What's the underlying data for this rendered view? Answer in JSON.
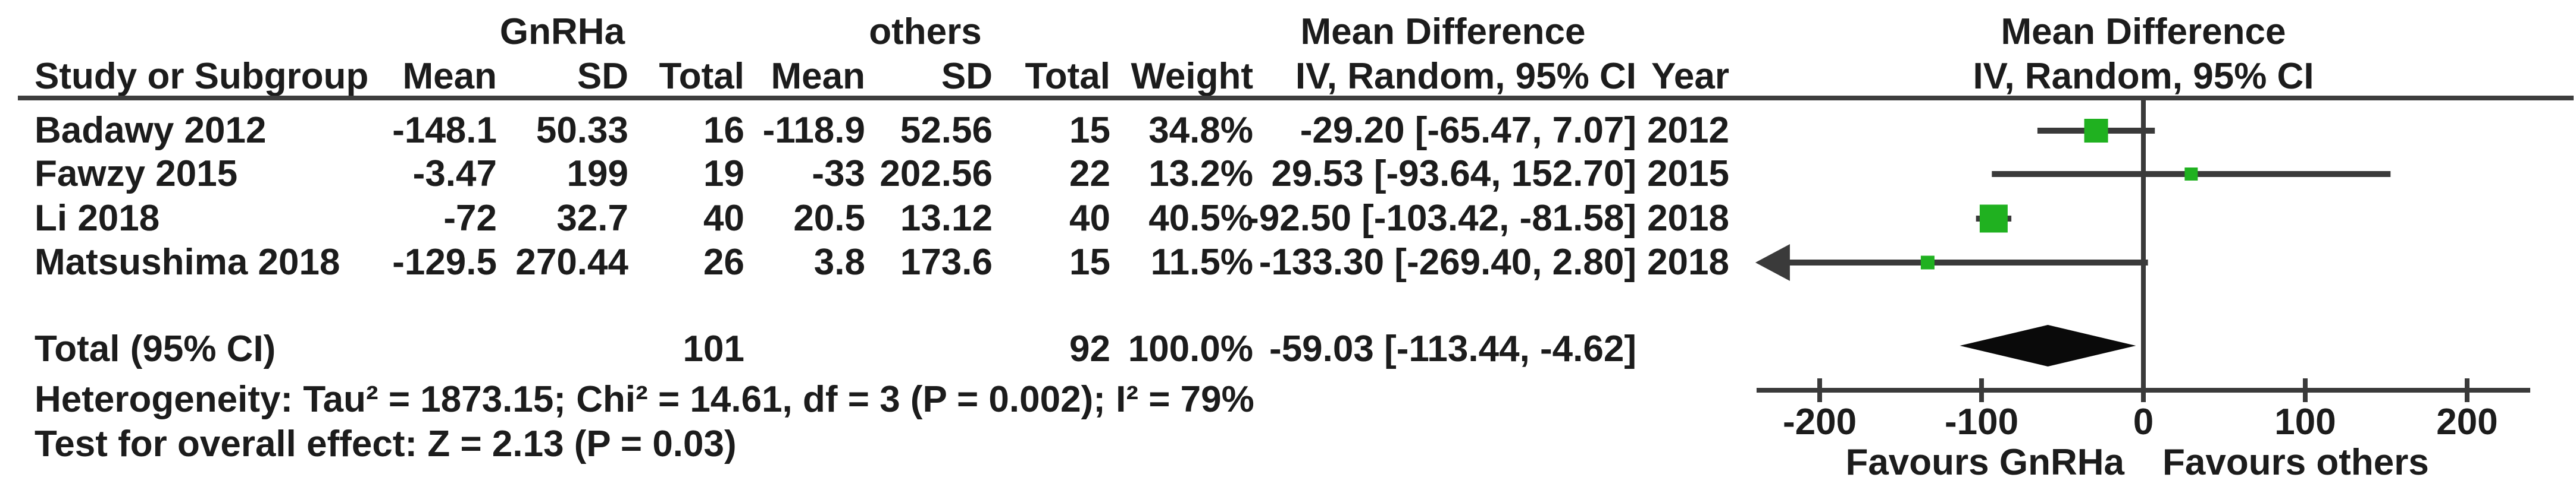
{
  "figure_title": "Forest plot: Mean Difference, GnRHa vs others (IV, Random, 95% CI)",
  "colors": {
    "marker_green": "#20b120",
    "line_dark": "#3a3a3a",
    "rule_gray": "#3e3e3e",
    "text": "#1c1c1c",
    "diamond_black": "#0a0a0a"
  },
  "table": {
    "group_headers": {
      "experimental": "GnRHa",
      "control": "others",
      "effect_text": "Mean Difference",
      "effect_plot": "Mean Difference"
    },
    "column_headers": {
      "study": "Study or Subgroup",
      "mean1": "Mean",
      "sd1": "SD",
      "total1": "Total",
      "mean2": "Mean",
      "sd2": "SD",
      "total2": "Total",
      "weight": "Weight",
      "ci": "IV, Random, 95% CI",
      "year": "Year",
      "ci_plot": "IV, Random, 95% CI"
    },
    "rows": [
      {
        "study": "Badawy 2012",
        "mean1": "-148.1",
        "sd1": "50.33",
        "total1": "16",
        "mean2": "-118.9",
        "sd2": "52.56",
        "total2": "15",
        "weight": "34.8%",
        "ci": "-29.20 [-65.47, 7.07]",
        "year": "2012"
      },
      {
        "study": "Fawzy 2015",
        "mean1": "-3.47",
        "sd1": "199",
        "total1": "19",
        "mean2": "-33",
        "sd2": "202.56",
        "total2": "22",
        "weight": "13.2%",
        "ci": "29.53 [-93.64, 152.70]",
        "year": "2015"
      },
      {
        "study": "Li 2018",
        "mean1": "-72",
        "sd1": "32.7",
        "total1": "40",
        "mean2": "20.5",
        "sd2": "13.12",
        "total2": "40",
        "weight": "40.5%",
        "ci": "-92.50 [-103.42, -81.58]",
        "year": "2018"
      },
      {
        "study": "Matsushima 2018",
        "mean1": "-129.5",
        "sd1": "270.44",
        "total1": "26",
        "mean2": "3.8",
        "sd2": "173.6",
        "total2": "15",
        "weight": "11.5%",
        "ci": "-133.30 [-269.40, 2.80]",
        "year": "2018"
      }
    ],
    "total": {
      "label": "Total (95% CI)",
      "total1": "101",
      "total2": "92",
      "weight": "100.0%",
      "ci": "-59.03 [-113.44, -4.62]"
    },
    "footer": {
      "heterogeneity": "Heterogeneity: Tau² = 1873.15; Chi² = 14.61, df = 3 (P = 0.002); I² = 79%",
      "overall_effect": "Test for overall effect: Z = 2.13 (P = 0.03)"
    }
  },
  "chart_data": {
    "type": "scatter",
    "variant": "forest_plot",
    "effect_measure": "Mean Difference",
    "model": "IV, Random, 95% CI",
    "points": [
      {
        "study": "Badawy 2012",
        "est": -29.2,
        "lo": -65.47,
        "hi": 7.07,
        "weight_pct": 34.8,
        "year": 2012,
        "marker_px": 40
      },
      {
        "study": "Fawzy 2015",
        "est": 29.53,
        "lo": -93.64,
        "hi": 152.7,
        "weight_pct": 13.2,
        "year": 2015,
        "marker_px": 22
      },
      {
        "study": "Li 2018",
        "est": -92.5,
        "lo": -103.42,
        "hi": -81.58,
        "weight_pct": 40.5,
        "year": 2018,
        "marker_px": 47
      },
      {
        "study": "Matsushima 2018",
        "est": -133.3,
        "lo": -269.4,
        "hi": 2.8,
        "weight_pct": 11.5,
        "year": 2018,
        "marker_px": 23
      }
    ],
    "pooled": {
      "label": "Total (95% CI)",
      "est": -59.03,
      "lo": -113.44,
      "hi": -4.62,
      "n_experimental": 101,
      "n_control": 92,
      "weight_pct": 100.0
    },
    "heterogeneity": {
      "tau2": 1873.15,
      "chi2": 14.61,
      "df": 3,
      "p": "0.002",
      "i2": "79%"
    },
    "overall_effect": {
      "z": 2.13,
      "p": "0.03"
    },
    "x_axis": {
      "ticks": [
        -200,
        -100,
        0,
        100,
        200
      ],
      "min": -239,
      "max": 239,
      "zero_line": true
    },
    "favours_left": "Favours GnRHa",
    "favours_right": "Favours others",
    "legend_position": "none",
    "grid": false
  }
}
